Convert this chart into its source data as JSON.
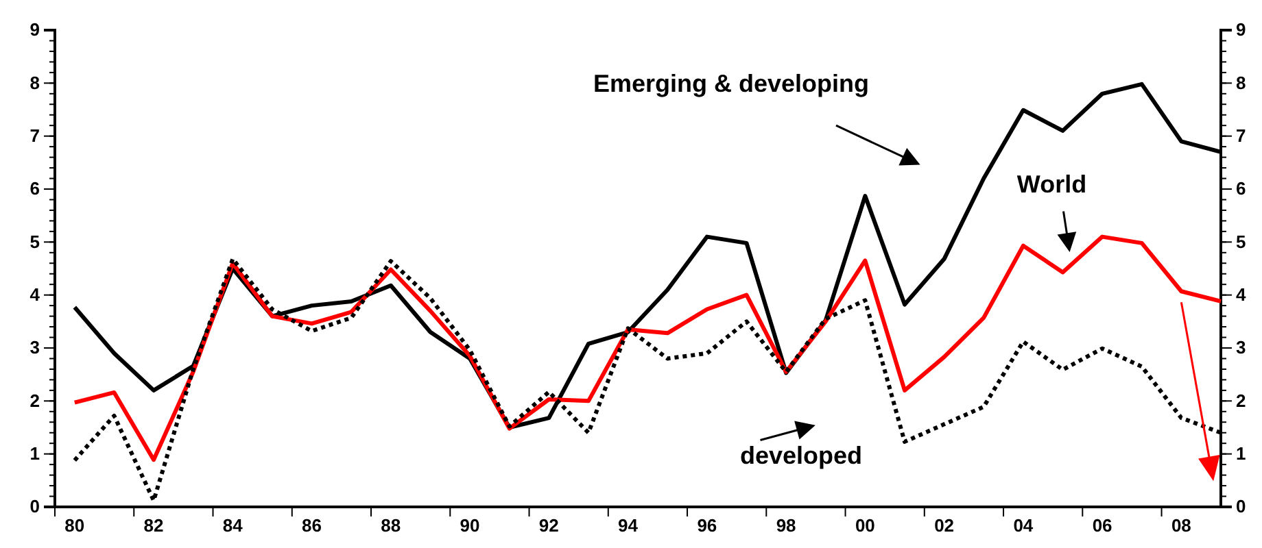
{
  "chart_data": {
    "type": "line",
    "categories": [
      "80",
      null,
      "82",
      null,
      "84",
      null,
      "86",
      null,
      "88",
      null,
      "90",
      null,
      "92",
      null,
      "94",
      null,
      "96",
      null,
      "98",
      null,
      "00",
      null,
      "02",
      null,
      "04",
      null,
      "06",
      null,
      "08",
      null
    ],
    "series": [
      {
        "color": "#000000",
        "line_style": "solid",
        "values": [
          3.77,
          2.9,
          2.2,
          2.66,
          4.5,
          3.6,
          3.8,
          3.88,
          4.18,
          3.3,
          2.8,
          1.5,
          1.68,
          3.08,
          3.3,
          4.1,
          5.1,
          4.98,
          2.53,
          3.52,
          5.87,
          3.82,
          4.68,
          6.2,
          7.49,
          7.1,
          7.8,
          7.98,
          6.9,
          6.7
        ]
      },
      {
        "color": "#ff0000",
        "line_style": "solid",
        "values": [
          1.97,
          2.16,
          0.89,
          2.55,
          4.6,
          3.6,
          3.46,
          3.68,
          4.48,
          3.7,
          2.85,
          1.48,
          2.03,
          2.0,
          3.35,
          3.28,
          3.73,
          4.0,
          2.55,
          3.5,
          4.65,
          2.2,
          2.83,
          3.57,
          4.93,
          4.43,
          5.1,
          4.98,
          4.07,
          3.88
        ]
      },
      {
        "color": "#000000",
        "line_style": "dotted",
        "values": [
          0.88,
          1.72,
          0.12,
          2.6,
          4.68,
          3.73,
          3.32,
          3.57,
          4.64,
          3.94,
          2.96,
          1.52,
          2.17,
          1.4,
          3.37,
          2.8,
          2.9,
          3.5,
          2.55,
          3.55,
          3.9,
          1.23,
          1.56,
          1.89,
          3.12,
          2.59,
          2.99,
          2.65,
          1.68,
          1.4
        ]
      }
    ],
    "ylim": [
      0,
      9
    ],
    "yticks": [
      0,
      1,
      2,
      3,
      4,
      5,
      6,
      7,
      8,
      9
    ],
    "y2lim": [
      0,
      9
    ],
    "y2ticks": [
      0,
      1,
      2,
      3,
      4,
      5,
      6,
      7,
      8,
      9
    ],
    "grid": false,
    "marker": "none",
    "annotations": [
      "Emerging & developing",
      "World",
      "developed"
    ]
  }
}
